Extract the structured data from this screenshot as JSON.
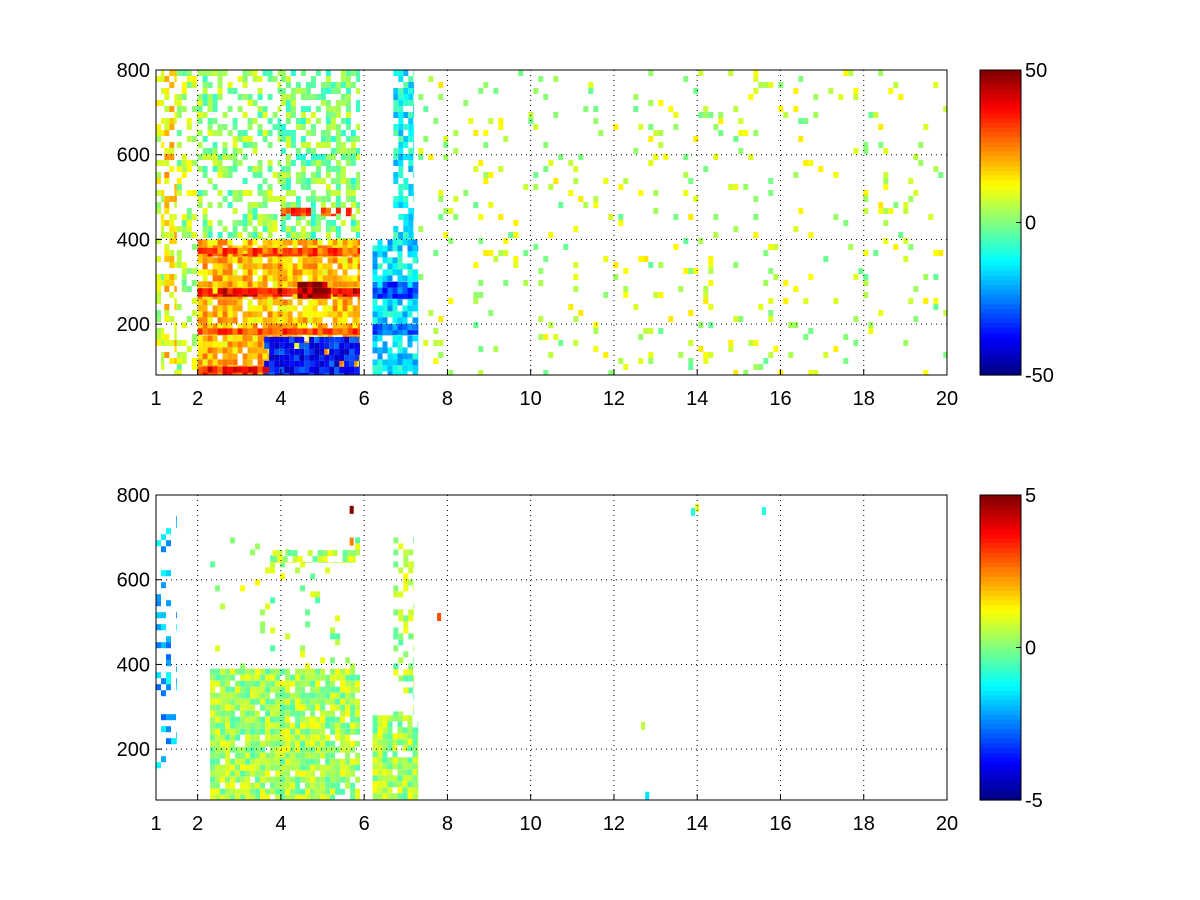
{
  "chart_data": [
    {
      "type": "heatmap",
      "title": "",
      "xlabel": "",
      "ylabel": "",
      "xlim": [
        1,
        20
      ],
      "ylim": [
        80,
        800
      ],
      "x_ticks": [
        1,
        2,
        4,
        6,
        8,
        10,
        12,
        14,
        16,
        18,
        20
      ],
      "y_ticks": [
        200,
        400,
        600,
        800
      ],
      "grid": true,
      "colormap": "jet",
      "colorbar": {
        "clim": [
          -50,
          50
        ],
        "ticks": [
          -50,
          0,
          50
        ]
      },
      "regions": [
        {
          "x": [
            1.0,
            1.2
          ],
          "y": [
            80,
            800
          ],
          "value": 8,
          "density": 0.45
        },
        {
          "x": [
            1.2,
            1.5
          ],
          "y": [
            80,
            800
          ],
          "value": 15,
          "density": 0.55
        },
        {
          "x": [
            1.5,
            2.0
          ],
          "y": [
            80,
            800
          ],
          "value": 5,
          "density": 0.4
        },
        {
          "x": [
            2.0,
            4.0
          ],
          "y": [
            400,
            800
          ],
          "value": 2,
          "density": 0.45
        },
        {
          "x": [
            4.0,
            5.9
          ],
          "y": [
            400,
            800
          ],
          "value": 0,
          "density": 0.6
        },
        {
          "x": [
            2.0,
            5.9
          ],
          "y": [
            80,
            400
          ],
          "value": 18,
          "density": 0.9
        },
        {
          "x": [
            2.0,
            5.9
          ],
          "y": [
            265,
            285
          ],
          "value": 38,
          "density": 0.95
        },
        {
          "x": [
            2.0,
            5.9
          ],
          "y": [
            175,
            190
          ],
          "value": 32,
          "density": 0.95
        },
        {
          "x": [
            2.0,
            5.9
          ],
          "y": [
            360,
            380
          ],
          "value": 30,
          "density": 0.95
        },
        {
          "x": [
            2.0,
            5.9
          ],
          "y": [
            80,
            100
          ],
          "value": 35,
          "density": 0.95
        },
        {
          "x": [
            4.0,
            5.7
          ],
          "y": [
            455,
            475
          ],
          "value": 30,
          "density": 0.8
        },
        {
          "x": [
            4.4,
            5.2
          ],
          "y": [
            260,
            300
          ],
          "value": 46,
          "density": 0.95
        },
        {
          "x": [
            3.6,
            5.9
          ],
          "y": [
            80,
            170
          ],
          "value": -35,
          "density": 0.9
        },
        {
          "x": [
            6.2,
            7.3
          ],
          "y": [
            80,
            400
          ],
          "value": -15,
          "density": 0.85
        },
        {
          "x": [
            6.2,
            7.3
          ],
          "y": [
            260,
            300
          ],
          "value": -30,
          "density": 0.9
        },
        {
          "x": [
            6.2,
            7.3
          ],
          "y": [
            175,
            200
          ],
          "value": -28,
          "density": 0.9
        },
        {
          "x": [
            6.7,
            7.2
          ],
          "y": [
            400,
            800
          ],
          "value": -12,
          "density": 0.7
        },
        {
          "x": [
            7.3,
            20.0
          ],
          "y": [
            80,
            800
          ],
          "value": 6,
          "density": 0.07
        }
      ]
    },
    {
      "type": "heatmap",
      "title": "",
      "xlabel": "",
      "ylabel": "",
      "xlim": [
        1,
        20
      ],
      "ylim": [
        80,
        800
      ],
      "x_ticks": [
        1,
        2,
        4,
        6,
        8,
        10,
        12,
        14,
        16,
        18,
        20
      ],
      "y_ticks": [
        200,
        400,
        600,
        800
      ],
      "grid": true,
      "colormap": "jet",
      "colorbar": {
        "clim": [
          -5,
          5
        ],
        "ticks": [
          -5,
          0,
          5
        ]
      },
      "regions": [
        {
          "x": [
            2.3,
            5.9
          ],
          "y": [
            80,
            390
          ],
          "value": 0.4,
          "density": 0.92
        },
        {
          "x": [
            2.3,
            5.9
          ],
          "y": [
            390,
            700
          ],
          "value": 0.4,
          "density": 0.06
        },
        {
          "x": [
            3.8,
            5.8
          ],
          "y": [
            640,
            670
          ],
          "value": 0.4,
          "density": 0.75
        },
        {
          "x": [
            6.2,
            7.3
          ],
          "y": [
            80,
            280
          ],
          "value": 0.4,
          "density": 0.9
        },
        {
          "x": [
            6.7,
            7.2
          ],
          "y": [
            280,
            700
          ],
          "value": 0.4,
          "density": 0.35
        },
        {
          "x": [
            1.0,
            1.5
          ],
          "y": [
            150,
            750
          ],
          "value": -2,
          "density": 0.15
        }
      ],
      "points": [
        {
          "x": 5.7,
          "y": 765,
          "value": 5
        },
        {
          "x": 5.7,
          "y": 690,
          "value": 2.5
        },
        {
          "x": 7.8,
          "y": 512,
          "value": 3
        },
        {
          "x": 12.8,
          "y": 90,
          "value": -1.5
        },
        {
          "x": 12.7,
          "y": 255,
          "value": 0.6
        },
        {
          "x": 14.0,
          "y": 770,
          "value": 1
        },
        {
          "x": 13.9,
          "y": 760,
          "value": -1
        },
        {
          "x": 15.6,
          "y": 762,
          "value": -1
        }
      ]
    }
  ]
}
